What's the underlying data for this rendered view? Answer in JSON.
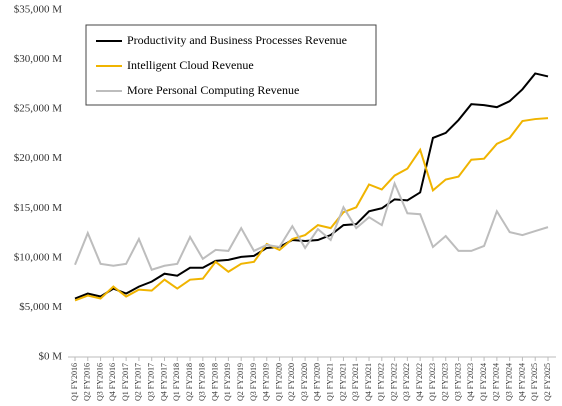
{
  "chart_data": {
    "type": "line",
    "categories": [
      "Q1 FY2016",
      "Q2 FY2016",
      "Q3 FY2016",
      "Q4 FY2016",
      "Q1 FY2017",
      "Q2 FY2017",
      "Q3 FY2017",
      "Q4 FY2017",
      "Q1 FY2018",
      "Q2 FY2018",
      "Q3 FY2018",
      "Q4 FY2018",
      "Q1 FY2019",
      "Q2 FY2019",
      "Q3 FY2019",
      "Q4 FY2019",
      "Q1 FY2020",
      "Q2 FY2020",
      "Q3 FY2020",
      "Q4 FY2020",
      "Q1 FY2021",
      "Q2 FY2021",
      "Q3 FY2021",
      "Q4 FY2021",
      "Q1 FY2022",
      "Q2 FY2022",
      "Q3 FY2022",
      "Q4 FY2022",
      "Q1 FY2023",
      "Q2 FY2023",
      "Q3 FY2023",
      "Q4 FY2023",
      "Q1 FY2024",
      "Q2 FY2024",
      "Q3 FY2024",
      "Q4 FY2024",
      "Q1 FY2025",
      "Q2 FY2025"
    ],
    "series": [
      {
        "name": "Productivity and Business Processes Revenue",
        "color": "#000000",
        "values": [
          5900,
          6400,
          6100,
          6900,
          6400,
          7100,
          7600,
          8400,
          8200,
          9000,
          9000,
          9700,
          9800,
          10100,
          10200,
          11000,
          11100,
          11800,
          11700,
          11800,
          12300,
          13300,
          13400,
          14700,
          15000,
          15900,
          15800,
          16600,
          22100,
          22600,
          23900,
          25500,
          25400,
          25200,
          25800,
          27000,
          28600,
          28300
        ]
      },
      {
        "name": "Intelligent Cloud Revenue",
        "color": "#f0b400",
        "values": [
          5700,
          6200,
          5900,
          7100,
          6100,
          6800,
          6700,
          7800,
          6900,
          7800,
          7900,
          9600,
          8600,
          9400,
          9600,
          11400,
          10800,
          11900,
          12300,
          13300,
          13000,
          14600,
          15100,
          17400,
          16900,
          18300,
          19000,
          20900,
          16800,
          17900,
          18200,
          19900,
          20000,
          21500,
          22100,
          23800,
          24000,
          24100
        ]
      },
      {
        "name": "More Personal Computing Revenue",
        "color": "#bdbdbd",
        "values": [
          9300,
          12500,
          9400,
          9200,
          9400,
          11900,
          8800,
          9200,
          9400,
          12100,
          9900,
          10800,
          10700,
          13000,
          10700,
          11300,
          11100,
          13200,
          11000,
          12900,
          11800,
          15100,
          13000,
          14100,
          13300,
          17500,
          14500,
          14400,
          11100,
          12200,
          10700,
          10700,
          11200,
          14700,
          12600,
          12300,
          12700,
          13100
        ]
      }
    ],
    "ylim": [
      0,
      35000
    ],
    "yticks": [
      {
        "value": 0,
        "label": "$0 M"
      },
      {
        "value": 5000,
        "label": "$5,000 M"
      },
      {
        "value": 10000,
        "label": "$10,000 M"
      },
      {
        "value": 15000,
        "label": "$15,000 M"
      },
      {
        "value": 20000,
        "label": "$20,000 M"
      },
      {
        "value": 25000,
        "label": "$25,000 M"
      },
      {
        "value": 30000,
        "label": "$30,000 M"
      },
      {
        "value": 35000,
        "label": "$35,000 M"
      }
    ],
    "grid": false,
    "legend": "upper left"
  }
}
